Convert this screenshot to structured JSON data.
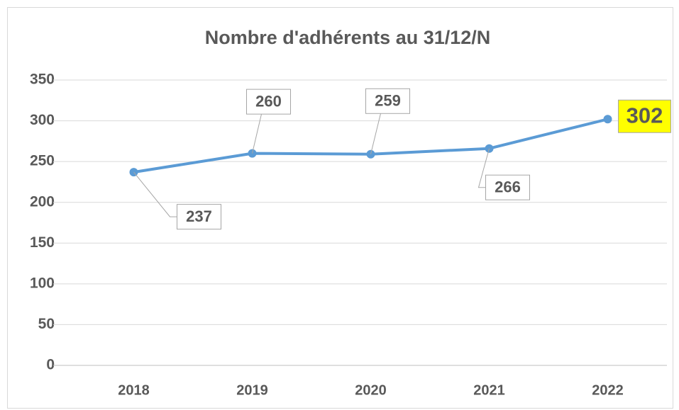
{
  "chart_data": {
    "type": "line",
    "title": "Nombre d'adhérents au 31/12/N",
    "categories": [
      "2018",
      "2019",
      "2020",
      "2021",
      "2022"
    ],
    "series": [
      {
        "color": "#5b9bd5",
        "values": [
          237,
          260,
          259,
          266,
          302
        ]
      }
    ],
    "ylim": [
      0,
      350
    ],
    "yticks": [
      0,
      50,
      100,
      150,
      200,
      250,
      300,
      350
    ],
    "grid": true,
    "highlight_index": 4,
    "highlight_color": "#ffff00"
  }
}
